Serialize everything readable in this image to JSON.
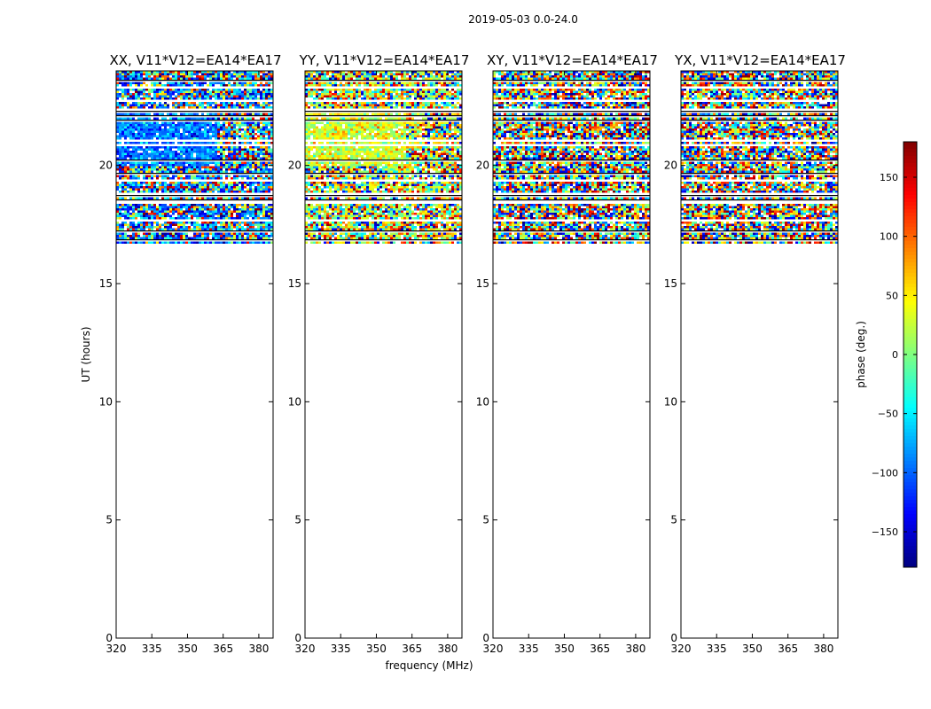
{
  "figure": {
    "suptitle": "2019-05-03 0.0-24.0",
    "xlabel": "frequency (MHz)",
    "ylabel": "UT (hours)"
  },
  "colorbar": {
    "label": "phase (deg.)",
    "min": -180,
    "max": 180,
    "ticks": [
      -150,
      -100,
      -50,
      0,
      50,
      100,
      150
    ],
    "tick_labels": [
      "−150",
      "−100",
      "−50",
      "0",
      "50",
      "100",
      "150"
    ],
    "colormap": "jet"
  },
  "chart_data": [
    {
      "type": "heatmap",
      "title": "XX, V11*V12=EA14*EA17",
      "xlim": [
        320,
        386
      ],
      "ylim": [
        0,
        24
      ],
      "xticks": [
        320,
        335,
        350,
        365,
        380
      ],
      "yticks": [
        0,
        5,
        10,
        15,
        20
      ],
      "data_ut_range": [
        16.7,
        24.0
      ],
      "phase_pattern": "mostly cyan/blue near -60 to -120 deg below 362 MHz between 20 and 22 UT, noisy above",
      "bias": -90,
      "spread": 45
    },
    {
      "type": "heatmap",
      "title": "YY, V11*V12=EA14*EA17",
      "xlim": [
        320,
        386
      ],
      "ylim": [
        0,
        24
      ],
      "xticks": [
        320,
        335,
        350,
        365,
        380
      ],
      "yticks": [
        0,
        5,
        10,
        15,
        20
      ],
      "data_ut_range": [
        16.7,
        24.0
      ],
      "phase_pattern": "mostly yellow/green near 0 to 60 deg below 362 MHz between 20 and 22 UT, noisy above",
      "bias": 30,
      "spread": 45
    },
    {
      "type": "heatmap",
      "title": "XY, V11*V12=EA14*EA17",
      "xlim": [
        320,
        386
      ],
      "ylim": [
        0,
        24
      ],
      "xticks": [
        320,
        335,
        350,
        365,
        380
      ],
      "yticks": [
        0,
        5,
        10,
        15,
        20
      ],
      "data_ut_range": [
        16.7,
        24.0
      ],
      "phase_pattern": "random phase noise",
      "bias": 0,
      "spread": 180
    },
    {
      "type": "heatmap",
      "title": "YX, V11*V12=EA14*EA17",
      "xlim": [
        320,
        386
      ],
      "ylim": [
        0,
        24
      ],
      "xticks": [
        320,
        335,
        350,
        365,
        380
      ],
      "yticks": [
        0,
        5,
        10,
        15,
        20
      ],
      "data_ut_range": [
        16.7,
        24.0
      ],
      "phase_pattern": "random phase noise",
      "bias": 0,
      "spread": 180
    }
  ]
}
